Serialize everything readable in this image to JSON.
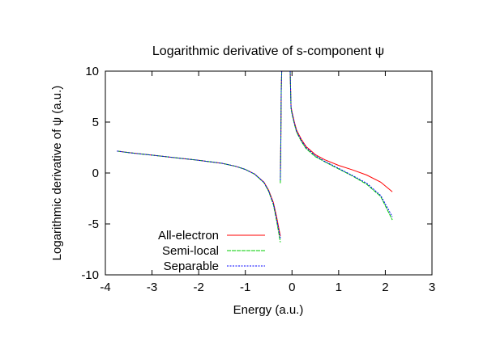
{
  "chart_data": {
    "type": "line",
    "title": "Logarithmic derivative of s-component ψ",
    "xlabel": "Energy (a.u.)",
    "ylabel": "Logarithmic derivative of ψ (a.u.)",
    "xlim": [
      -4,
      3
    ],
    "ylim": [
      -10,
      10
    ],
    "xticks": [
      -4,
      -3,
      -2,
      -1,
      0,
      1,
      2,
      3
    ],
    "xtick_labels": [
      "-4",
      "-3",
      "-2",
      "-1",
      "0",
      "1",
      "2",
      "3"
    ],
    "yticks": [
      -10,
      -5,
      0,
      5,
      10
    ],
    "ytick_labels": [
      "-10",
      "-5",
      "0",
      "5",
      "10"
    ],
    "grid": false,
    "legend_position": "bottom-left",
    "series": [
      {
        "name": "All-electron",
        "color": "#ff0000",
        "dash": "solid",
        "segments": [
          [
            [
              -3.75,
              2.15
            ],
            [
              -3.5,
              2.0
            ],
            [
              -3.0,
              1.75
            ],
            [
              -2.5,
              1.5
            ],
            [
              -2.0,
              1.25
            ],
            [
              -1.5,
              0.95
            ],
            [
              -1.2,
              0.65
            ],
            [
              -1.0,
              0.35
            ],
            [
              -0.8,
              -0.1
            ],
            [
              -0.6,
              -0.9
            ],
            [
              -0.5,
              -1.7
            ],
            [
              -0.4,
              -2.9
            ],
            [
              -0.33,
              -4.3
            ],
            [
              -0.28,
              -5.5
            ],
            [
              -0.25,
              -6.2
            ]
          ],
          [
            [
              -0.25,
              -0.5
            ],
            [
              -0.24,
              3
            ],
            [
              -0.23,
              8
            ],
            [
              -0.22,
              10
            ]
          ],
          [
            [
              -0.04,
              10
            ],
            [
              -0.02,
              6.5
            ],
            [
              0.0,
              6.0
            ],
            [
              0.05,
              5.0
            ],
            [
              0.1,
              4.2
            ],
            [
              0.2,
              3.3
            ],
            [
              0.3,
              2.6
            ],
            [
              0.5,
              1.8
            ],
            [
              0.7,
              1.3
            ],
            [
              1.0,
              0.75
            ],
            [
              1.3,
              0.3
            ],
            [
              1.6,
              -0.2
            ],
            [
              1.9,
              -0.9
            ],
            [
              2.15,
              -1.85
            ]
          ]
        ]
      },
      {
        "name": "Semi-local",
        "color": "#00cc00",
        "dash": "5,1",
        "segments": [
          [
            [
              -3.75,
              2.15
            ],
            [
              -3.5,
              2.0
            ],
            [
              -3.0,
              1.75
            ],
            [
              -2.5,
              1.5
            ],
            [
              -2.0,
              1.25
            ],
            [
              -1.5,
              0.95
            ],
            [
              -1.2,
              0.65
            ],
            [
              -1.0,
              0.35
            ],
            [
              -0.8,
              -0.12
            ],
            [
              -0.6,
              -0.95
            ],
            [
              -0.5,
              -1.8
            ],
            [
              -0.4,
              -3.1
            ],
            [
              -0.33,
              -4.7
            ],
            [
              -0.28,
              -6.0
            ],
            [
              -0.25,
              -6.8
            ]
          ],
          [
            [
              -0.25,
              -1.0
            ],
            [
              -0.24,
              3
            ],
            [
              -0.23,
              8
            ],
            [
              -0.22,
              10
            ]
          ],
          [
            [
              -0.04,
              10
            ],
            [
              -0.02,
              6.3
            ],
            [
              0.0,
              5.8
            ],
            [
              0.05,
              4.8
            ],
            [
              0.1,
              4.0
            ],
            [
              0.2,
              3.1
            ],
            [
              0.3,
              2.4
            ],
            [
              0.5,
              1.6
            ],
            [
              0.7,
              1.1
            ],
            [
              1.0,
              0.4
            ],
            [
              1.3,
              -0.3
            ],
            [
              1.6,
              -1.1
            ],
            [
              1.9,
              -2.3
            ],
            [
              2.15,
              -4.6
            ]
          ]
        ]
      },
      {
        "name": "Separable",
        "color": "#0000ff",
        "dash": "2,1.5",
        "segments": [
          [
            [
              -3.75,
              2.15
            ],
            [
              -3.5,
              2.0
            ],
            [
              -3.0,
              1.75
            ],
            [
              -2.5,
              1.5
            ],
            [
              -2.0,
              1.25
            ],
            [
              -1.5,
              0.95
            ],
            [
              -1.2,
              0.65
            ],
            [
              -1.0,
              0.35
            ],
            [
              -0.8,
              -0.1
            ],
            [
              -0.6,
              -0.92
            ],
            [
              -0.5,
              -1.75
            ],
            [
              -0.4,
              -3.0
            ],
            [
              -0.33,
              -4.5
            ],
            [
              -0.28,
              -5.7
            ],
            [
              -0.25,
              -6.4
            ]
          ],
          [
            [
              -0.25,
              -0.7
            ],
            [
              -0.24,
              3
            ],
            [
              -0.23,
              8
            ],
            [
              -0.22,
              10
            ]
          ],
          [
            [
              -0.04,
              10
            ],
            [
              -0.02,
              6.4
            ],
            [
              0.0,
              5.9
            ],
            [
              0.05,
              4.9
            ],
            [
              0.1,
              4.1
            ],
            [
              0.2,
              3.2
            ],
            [
              0.3,
              2.5
            ],
            [
              0.5,
              1.7
            ],
            [
              0.7,
              1.15
            ],
            [
              1.0,
              0.45
            ],
            [
              1.3,
              -0.25
            ],
            [
              1.6,
              -1.0
            ],
            [
              1.9,
              -2.2
            ],
            [
              2.15,
              -4.3
            ]
          ]
        ]
      }
    ]
  }
}
